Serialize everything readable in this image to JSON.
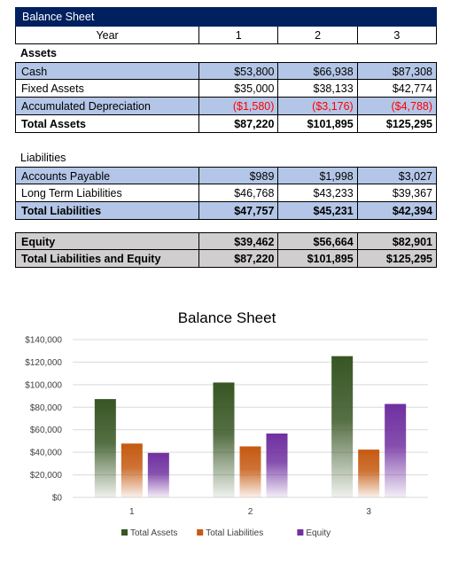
{
  "sheet": {
    "title": "Balance Sheet",
    "header": {
      "label": "Year",
      "years": [
        "1",
        "2",
        "3"
      ]
    },
    "assets_label": "Assets",
    "assets_rows": [
      {
        "label": "Cash",
        "values": [
          "$53,800",
          "$66,938",
          "$87,308"
        ],
        "style": "blue"
      },
      {
        "label": "Fixed Assets",
        "values": [
          "$35,000",
          "$38,133",
          "$42,774"
        ],
        "style": "white"
      },
      {
        "label": "Accumulated Depreciation",
        "values": [
          "($1,580)",
          "($3,176)",
          "($4,788)"
        ],
        "style": "blue-neg"
      }
    ],
    "total_assets": {
      "label": "Total Assets",
      "values": [
        "$87,220",
        "$101,895",
        "$125,295"
      ]
    },
    "liabilities_label": "Liabilities",
    "liabilities_rows": [
      {
        "label": "Accounts Payable",
        "values": [
          "$989",
          "$1,998",
          "$3,027"
        ],
        "style": "blue"
      },
      {
        "label": "Long Term Liabilities",
        "values": [
          "$46,768",
          "$43,233",
          "$39,367"
        ],
        "style": "white"
      }
    ],
    "total_liabilities": {
      "label": "Total Liabilities",
      "values": [
        "$47,757",
        "$45,231",
        "$42,394"
      ]
    },
    "equity": {
      "label": "Equity",
      "values": [
        "$39,462",
        "$56,664",
        "$82,901"
      ]
    },
    "total_liab_equity": {
      "label": "Total Liabilities and Equity",
      "values": [
        "$87,220",
        "$101,895",
        "$125,295"
      ]
    }
  },
  "chart_data": {
    "type": "bar",
    "title": "Balance Sheet",
    "categories": [
      "1",
      "2",
      "3"
    ],
    "series": [
      {
        "name": "Total Assets",
        "values": [
          87220,
          101895,
          125295
        ],
        "color": "#375623"
      },
      {
        "name": "Total Liabilities",
        "values": [
          47757,
          45231,
          42394
        ],
        "color": "#c55a11"
      },
      {
        "name": "Equity",
        "values": [
          39462,
          56664,
          82901
        ],
        "color": "#7030a0"
      }
    ],
    "ylim": [
      0,
      140000
    ],
    "yticks": [
      0,
      20000,
      40000,
      60000,
      80000,
      100000,
      120000,
      140000
    ],
    "ytick_labels": [
      "$0",
      "$20,000",
      "$40,000",
      "$60,000",
      "$80,000",
      "$100,000",
      "$120,000",
      "$140,000"
    ],
    "grid": true,
    "legend_position": "bottom",
    "gradient_fill": true
  }
}
